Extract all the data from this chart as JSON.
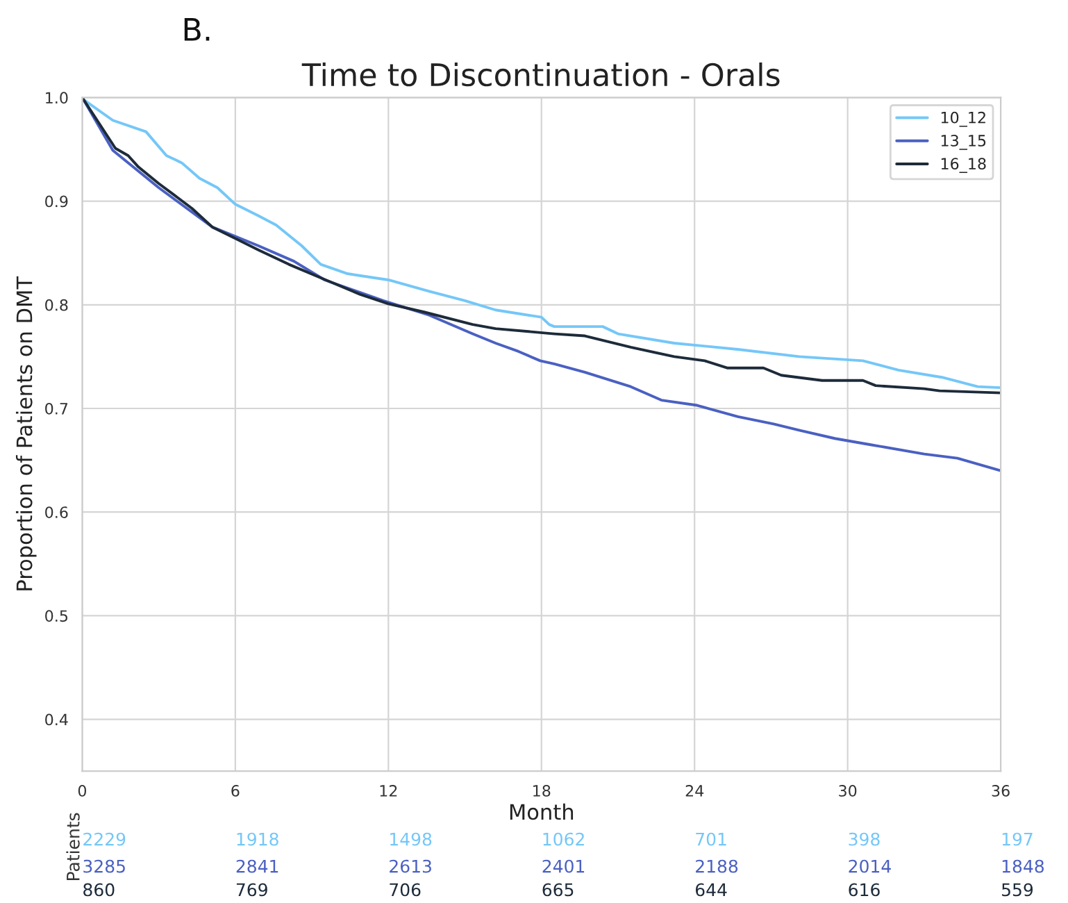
{
  "chart_data": {
    "type": "line",
    "title": "Time to Discontinuation - Orals",
    "xlabel": "Month",
    "ylabel": "Proportion of Patients on DMT",
    "xlim": [
      0,
      36
    ],
    "xticks": [
      0,
      6,
      12,
      18,
      24,
      30,
      36
    ],
    "ylim": [
      0.35,
      1.0
    ],
    "yticks": [
      0.4,
      0.5,
      0.6,
      0.7,
      0.8,
      0.9,
      {
        "value": 1.0,
        "label": "1.0"
      }
    ],
    "grid": true,
    "legend": "top right",
    "series": [
      {
        "name": "10_12",
        "color": "#74c7f8",
        "x": [
          0,
          0.05,
          1.2,
          2.5,
          3.3,
          3.9,
          4.6,
          5.3,
          6.0,
          6.9,
          7.6,
          8.6,
          9.35,
          10.4,
          12.0,
          13.6,
          15.0,
          16.2,
          18.0,
          18.3,
          18.5,
          20.4,
          21.0,
          23.2,
          25.7,
          28.1,
          30.6,
          32.0,
          33.7,
          35.1,
          36
        ],
        "values": [
          1.0,
          0.998,
          0.978,
          0.967,
          0.944,
          0.937,
          0.922,
          0.913,
          0.897,
          0.886,
          0.877,
          0.857,
          0.839,
          0.83,
          0.824,
          0.813,
          0.804,
          0.795,
          0.788,
          0.781,
          0.779,
          0.779,
          0.772,
          0.763,
          0.757,
          0.75,
          0.746,
          0.737,
          0.73,
          0.721,
          0.72
        ]
      },
      {
        "name": "13_15",
        "color": "#4a60c2",
        "x": [
          0,
          1.2,
          3.0,
          5.1,
          6.9,
          8.3,
          9.5,
          11.8,
          13.6,
          15.3,
          16.2,
          17.1,
          17.95,
          18.5,
          19.7,
          21.5,
          22.7,
          24.1,
          25.7,
          27.1,
          28.1,
          29.5,
          30.9,
          33.0,
          34.3,
          36
        ],
        "values": [
          1.0,
          0.949,
          0.913,
          0.875,
          0.857,
          0.842,
          0.824,
          0.804,
          0.79,
          0.772,
          0.763,
          0.755,
          0.746,
          0.743,
          0.735,
          0.721,
          0.708,
          0.703,
          0.692,
          0.685,
          0.679,
          0.671,
          0.665,
          0.656,
          0.652,
          0.64
        ]
      },
      {
        "name": "16_18",
        "color": "#1d2b3a",
        "x": [
          0,
          1.3,
          1.8,
          2.2,
          3.0,
          3.6,
          4.3,
          5.1,
          6.0,
          6.9,
          8.1,
          9.35,
          10.9,
          12.0,
          13.4,
          15.3,
          16.2,
          18.5,
          19.7,
          21.5,
          23.2,
          24.4,
          25.3,
          26.7,
          27.4,
          29.0,
          30.6,
          31.1,
          33.0,
          33.6,
          36
        ],
        "values": [
          1.0,
          0.951,
          0.944,
          0.933,
          0.917,
          0.906,
          0.893,
          0.875,
          0.864,
          0.853,
          0.839,
          0.826,
          0.81,
          0.801,
          0.793,
          0.781,
          0.777,
          0.772,
          0.77,
          0.759,
          0.75,
          0.746,
          0.739,
          0.739,
          0.732,
          0.727,
          0.727,
          0.722,
          0.719,
          0.717,
          0.715
        ]
      }
    ],
    "annotations": [
      "B.",
      "Patients",
      "2229",
      "1918",
      "1498",
      "1062",
      "701",
      "398",
      "197",
      "3285",
      "2841",
      "2613",
      "2401",
      "2188",
      "2014",
      "1848",
      "860",
      "769",
      "706",
      "665",
      "644",
      "616",
      "559"
    ]
  }
}
